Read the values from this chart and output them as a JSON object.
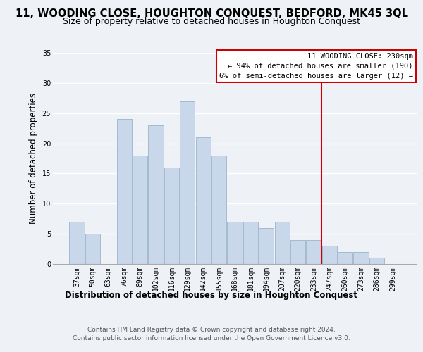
{
  "title": "11, WOODING CLOSE, HOUGHTON CONQUEST, BEDFORD, MK45 3QL",
  "subtitle": "Size of property relative to detached houses in Houghton Conquest",
  "xlabel": "Distribution of detached houses by size in Houghton Conquest",
  "ylabel": "Number of detached properties",
  "bar_labels": [
    "37sqm",
    "50sqm",
    "63sqm",
    "76sqm",
    "89sqm",
    "102sqm",
    "116sqm",
    "129sqm",
    "142sqm",
    "155sqm",
    "168sqm",
    "181sqm",
    "194sqm",
    "207sqm",
    "220sqm",
    "233sqm",
    "247sqm",
    "260sqm",
    "273sqm",
    "286sqm",
    "299sqm"
  ],
  "bar_values": [
    7,
    5,
    0,
    24,
    18,
    23,
    16,
    27,
    21,
    18,
    7,
    7,
    6,
    7,
    4,
    4,
    3,
    2,
    2,
    1,
    0
  ],
  "bar_color": "#c8d8ea",
  "bar_edge_color": "#9ab4cc",
  "ylim": [
    0,
    35
  ],
  "yticks": [
    0,
    5,
    10,
    15,
    20,
    25,
    30,
    35
  ],
  "vline_x": 15.5,
  "vline_color": "#cc0000",
  "annotation_title": "11 WOODING CLOSE: 230sqm",
  "annotation_line1": "← 94% of detached houses are smaller (190)",
  "annotation_line2": "6% of semi-detached houses are larger (12) →",
  "annotation_box_color": "#ffffff",
  "annotation_box_edge": "#cc0000",
  "footer1": "Contains HM Land Registry data © Crown copyright and database right 2024.",
  "footer2": "Contains public sector information licensed under the Open Government Licence v3.0.",
  "bg_color": "#eef2f7",
  "grid_color": "#ffffff",
  "title_fontsize": 10.5,
  "subtitle_fontsize": 9,
  "axis_label_fontsize": 8.5,
  "tick_fontsize": 7,
  "footer_fontsize": 6.5
}
